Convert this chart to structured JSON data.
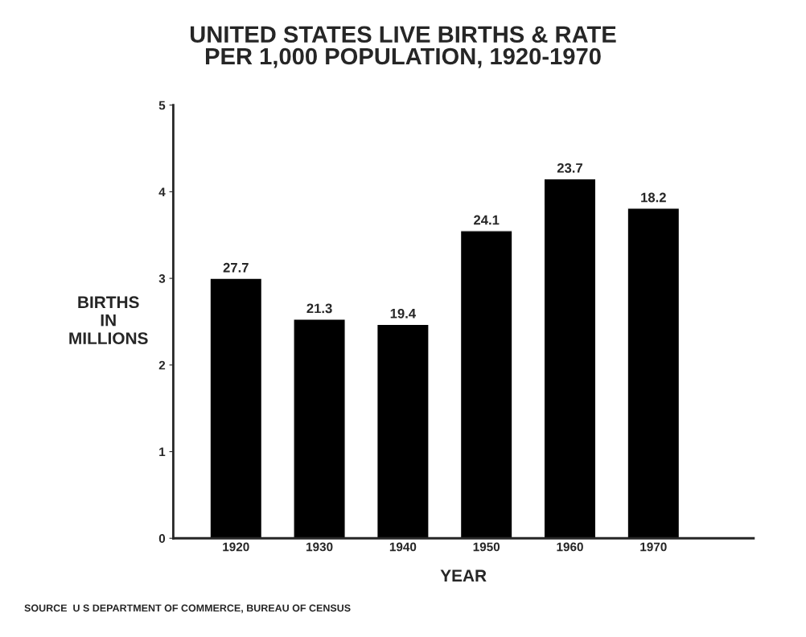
{
  "chart_data": {
    "type": "bar",
    "title": "UNITED STATES LIVE BIRTHS & RATE\nPER 1,000 POPULATION, 1920-1970",
    "xlabel": "YEAR",
    "ylabel": "BIRTHS\nIN\nMILLIONS",
    "categories": [
      "1920",
      "1930",
      "1940",
      "1950",
      "1960",
      "1970"
    ],
    "values": [
      3.0,
      2.53,
      2.47,
      3.55,
      4.15,
      3.81
    ],
    "color": "#000000",
    "ylim": [
      0,
      5
    ],
    "yticks": [
      0,
      1,
      2,
      3,
      4,
      5
    ],
    "grid": false,
    "annotations": [
      {
        "text": "27.7",
        "x": "1920",
        "y": 3.0
      },
      {
        "text": "21.3",
        "x": "1930",
        "y": 2.53
      },
      {
        "text": "19.4",
        "x": "1940",
        "y": 2.47
      },
      {
        "text": "24.1",
        "x": "1950",
        "y": 3.55
      },
      {
        "text": "23.7",
        "x": "1960",
        "y": 4.15
      },
      {
        "text": "18.2",
        "x": "1970",
        "y": 3.81
      },
      "SOURCE  U S DEPARTMENT OF COMMERCE, BUREAU OF CENSUS"
    ]
  }
}
